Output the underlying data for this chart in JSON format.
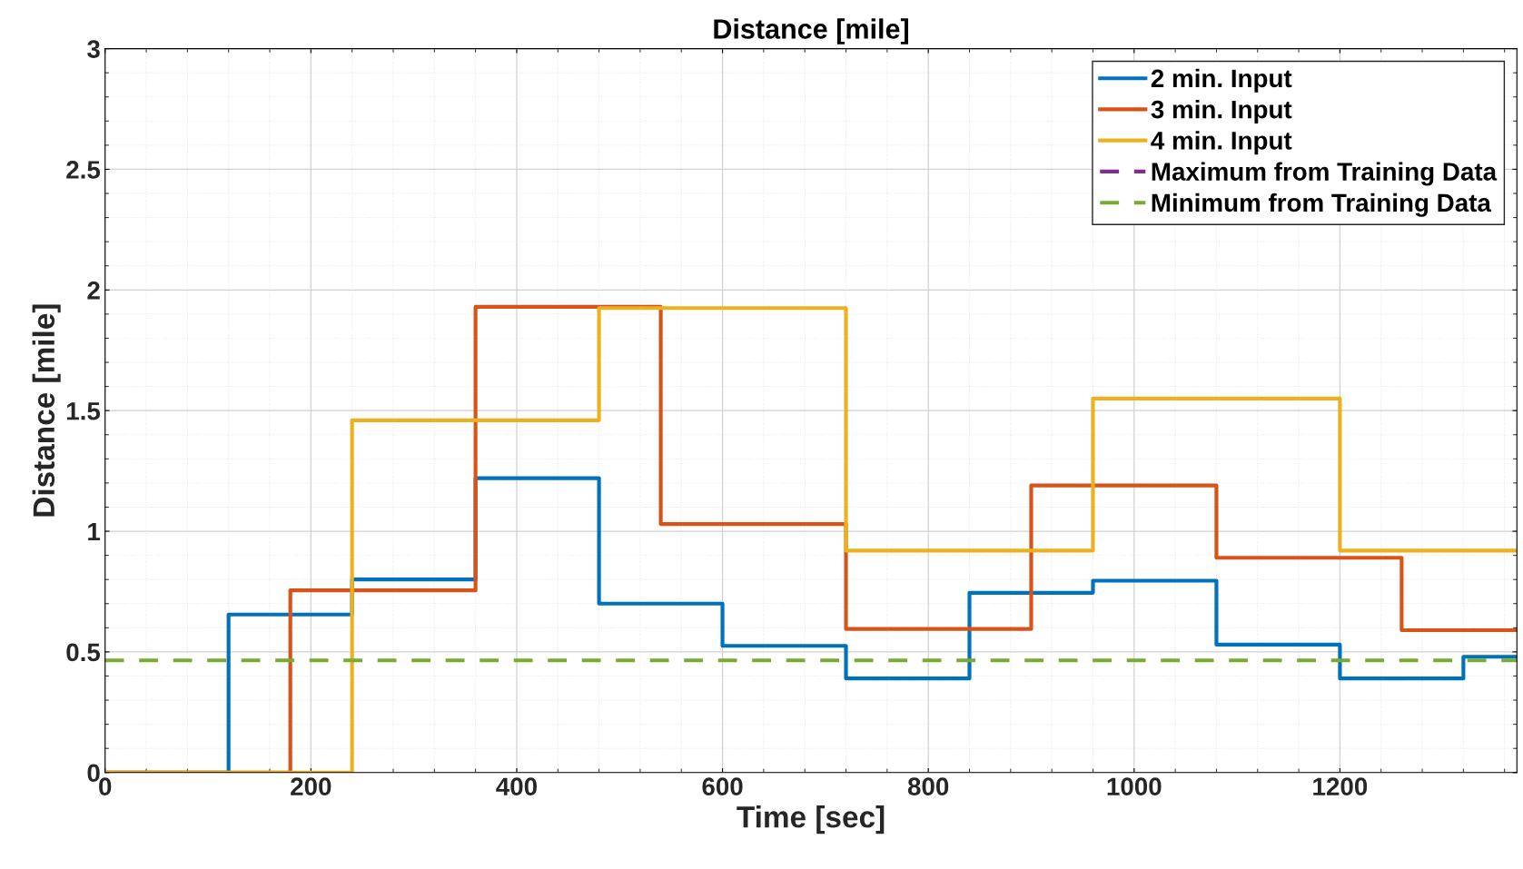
{
  "chart_data": {
    "type": "step",
    "title": "Distance [mile]",
    "xlabel": "Time [sec]",
    "ylabel": "Distance [mile]",
    "xlim": [
      0,
      1372
    ],
    "xticks": [
      0,
      200,
      400,
      600,
      800,
      1000,
      1200
    ],
    "ylim": [
      0,
      3
    ],
    "yticks": [
      0,
      0.5,
      1,
      1.5,
      2,
      2.5,
      3
    ],
    "grid": true,
    "legend": "top right",
    "series": [
      {
        "name": "2 min. Input",
        "color": "#0072bd",
        "x": [
          0,
          120,
          240,
          360,
          480,
          600,
          720,
          840,
          960,
          1080,
          1200,
          1320,
          1372
        ],
        "values": [
          0,
          0.655,
          0.8,
          1.22,
          0.7,
          0.525,
          0.39,
          0.745,
          0.795,
          0.53,
          0.39,
          0.48,
          0.48
        ]
      },
      {
        "name": "3 min. Input",
        "color": "#d95319",
        "x": [
          0,
          180,
          360,
          540,
          720,
          900,
          1080,
          1260,
          1372
        ],
        "values": [
          0,
          0.755,
          1.93,
          1.03,
          0.595,
          1.19,
          0.89,
          0.59,
          0.59
        ]
      },
      {
        "name": "4 min. Input",
        "color": "#edb120",
        "x": [
          0,
          240,
          480,
          720,
          960,
          1200,
          1372
        ],
        "values": [
          0,
          1.46,
          1.925,
          0.92,
          1.55,
          0.92,
          0.92
        ]
      },
      {
        "name": "Maximum from Training Data",
        "color": "#7e2f8e",
        "type": "line",
        "line_style": "dashed"
      },
      {
        "name": "Minimum from Training Data",
        "color": "#77ac30",
        "type": "line",
        "line_style": "dashed",
        "x": [
          0,
          1372
        ],
        "values": [
          0.465,
          0.465
        ]
      }
    ]
  }
}
